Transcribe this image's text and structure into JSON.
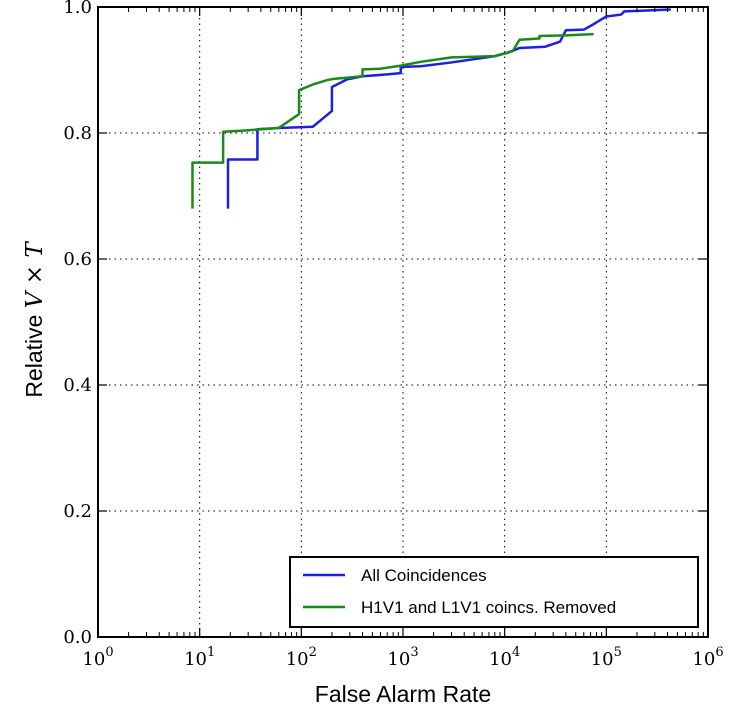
{
  "chart_data": {
    "type": "line",
    "xlabel": "False Alarm Rate",
    "ylabel_prefix": "Relative ",
    "ylabel_math_v": "V",
    "ylabel_math_times": " × ",
    "ylabel_math_t": "T",
    "x_scale": "log",
    "xlim": [
      1,
      1000000
    ],
    "ylim": [
      0.0,
      1.0
    ],
    "grid": true,
    "legend_position": "lower-right",
    "x_ticks": [
      {
        "base": "10",
        "exp": "0",
        "value": 1
      },
      {
        "base": "10",
        "exp": "1",
        "value": 10
      },
      {
        "base": "10",
        "exp": "2",
        "value": 100
      },
      {
        "base": "10",
        "exp": "3",
        "value": 1000
      },
      {
        "base": "10",
        "exp": "4",
        "value": 10000
      },
      {
        "base": "10",
        "exp": "5",
        "value": 100000
      },
      {
        "base": "10",
        "exp": "6",
        "value": 1000000
      }
    ],
    "y_ticks": [
      {
        "label": "0.0",
        "value": 0.0
      },
      {
        "label": "0.2",
        "value": 0.2
      },
      {
        "label": "0.4",
        "value": 0.4
      },
      {
        "label": "0.6",
        "value": 0.6
      },
      {
        "label": "0.8",
        "value": 0.8
      },
      {
        "label": "1.0",
        "value": 1.0
      }
    ],
    "series": [
      {
        "name": "All Coincidences",
        "color": "#1f1fe0",
        "points": [
          [
            19,
            0.68
          ],
          [
            19,
            0.758
          ],
          [
            37,
            0.758
          ],
          [
            37,
            0.806
          ],
          [
            60,
            0.808
          ],
          [
            130,
            0.81
          ],
          [
            200,
            0.835
          ],
          [
            200,
            0.873
          ],
          [
            280,
            0.885
          ],
          [
            400,
            0.89
          ],
          [
            700,
            0.893
          ],
          [
            950,
            0.895
          ],
          [
            950,
            0.905
          ],
          [
            1500,
            0.906
          ],
          [
            3000,
            0.912
          ],
          [
            8000,
            0.922
          ],
          [
            11000,
            0.928
          ],
          [
            14000,
            0.935
          ],
          [
            25000,
            0.937
          ],
          [
            35000,
            0.945
          ],
          [
            40000,
            0.963
          ],
          [
            60000,
            0.964
          ],
          [
            70000,
            0.97
          ],
          [
            100000,
            0.985
          ],
          [
            140000,
            0.988
          ],
          [
            150000,
            0.993
          ],
          [
            430000,
            0.996
          ]
        ]
      },
      {
        "name": "H1V1 and L1V1 coincs. Removed",
        "color": "#1a8a1a",
        "points": [
          [
            8.5,
            0.68
          ],
          [
            8.5,
            0.753
          ],
          [
            17,
            0.753
          ],
          [
            17,
            0.802
          ],
          [
            28,
            0.804
          ],
          [
            60,
            0.808
          ],
          [
            95,
            0.83
          ],
          [
            95,
            0.868
          ],
          [
            130,
            0.877
          ],
          [
            180,
            0.884
          ],
          [
            210,
            0.886
          ],
          [
            400,
            0.89
          ],
          [
            400,
            0.901
          ],
          [
            600,
            0.902
          ],
          [
            950,
            0.907
          ],
          [
            1500,
            0.913
          ],
          [
            3000,
            0.92
          ],
          [
            8000,
            0.922
          ],
          [
            12000,
            0.93
          ],
          [
            14000,
            0.948
          ],
          [
            22000,
            0.95
          ],
          [
            22000,
            0.954
          ],
          [
            40000,
            0.955
          ],
          [
            75000,
            0.957
          ]
        ]
      }
    ]
  }
}
